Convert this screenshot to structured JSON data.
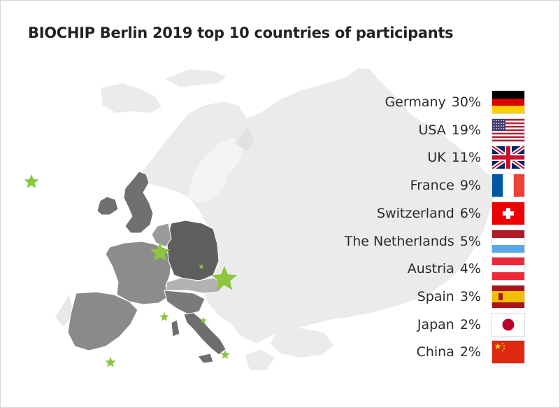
{
  "chart_data": {
    "type": "table",
    "title": "BIOCHIP Berlin 2019 top 10 countries of participants",
    "rows": [
      {
        "country": "Germany",
        "percent": "30%",
        "value": 30,
        "flag": "flag-germany-icon"
      },
      {
        "country": "USA",
        "percent": "19%",
        "value": 19,
        "flag": "flag-usa-icon"
      },
      {
        "country": "UK",
        "percent": "11%",
        "value": 11,
        "flag": "flag-uk-icon"
      },
      {
        "country": "France",
        "percent": "9%",
        "value": 9,
        "flag": "flag-france-icon"
      },
      {
        "country": "Switzerland",
        "percent": "6%",
        "value": 6,
        "flag": "flag-switzerland-icon"
      },
      {
        "country": "The Netherlands",
        "percent": "5%",
        "value": 5,
        "flag": "flag-netherlands-icon"
      },
      {
        "country": "Austria",
        "percent": "4%",
        "value": 4,
        "flag": "flag-austria-icon"
      },
      {
        "country": "Spain",
        "percent": "3%",
        "value": 3,
        "flag": "flag-spain-icon"
      },
      {
        "country": "Japan",
        "percent": "2%",
        "value": 2,
        "flag": "flag-japan-icon"
      },
      {
        "country": "China",
        "percent": "2%",
        "value": 2,
        "flag": "flag-china-icon"
      }
    ]
  },
  "colors": {
    "map_background": "#ebebeb",
    "highlight_dark": "#5e5e5e",
    "highlight_mid": "#8c8c8c",
    "highlight_light": "#a8a8a8",
    "star": "#8dc63f"
  }
}
